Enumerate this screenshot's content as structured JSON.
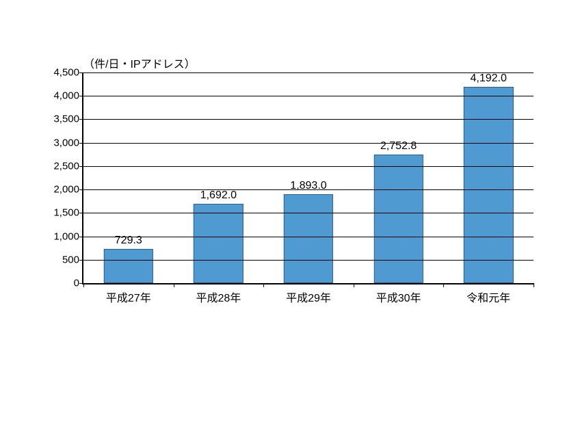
{
  "chart": {
    "type": "bar",
    "y_title": "（件/日・IPアドレス）",
    "ylim": [
      0,
      4500
    ],
    "ytick_step": 500,
    "yticks": [
      {
        "v": 0,
        "label": "0"
      },
      {
        "v": 500,
        "label": "500"
      },
      {
        "v": 1000,
        "label": "1,000"
      },
      {
        "v": 1500,
        "label": "1,500"
      },
      {
        "v": 2000,
        "label": "2,000"
      },
      {
        "v": 2500,
        "label": "2,500"
      },
      {
        "v": 3000,
        "label": "3,000"
      },
      {
        "v": 3500,
        "label": "3,500"
      },
      {
        "v": 4000,
        "label": "4,000"
      },
      {
        "v": 4500,
        "label": "4,500"
      }
    ],
    "categories": [
      "平成27年",
      "平成28年",
      "平成29年",
      "平成30年",
      "令和元年"
    ],
    "values": [
      729.3,
      1692.0,
      1893.0,
      2752.8,
      4192.0
    ],
    "value_labels": [
      "729.3",
      "1,692.0",
      "1,893.0",
      "2,752.8",
      "4,192.0"
    ],
    "bar_fill": "#4f9bd1",
    "bar_stroke": "#2b5d86",
    "bar_width_ratio": 0.55,
    "grid_color": "#000000",
    "axis_color": "#000000",
    "background_color": "#ffffff",
    "label_fontsize": 16,
    "tick_fontsize": 15
  }
}
